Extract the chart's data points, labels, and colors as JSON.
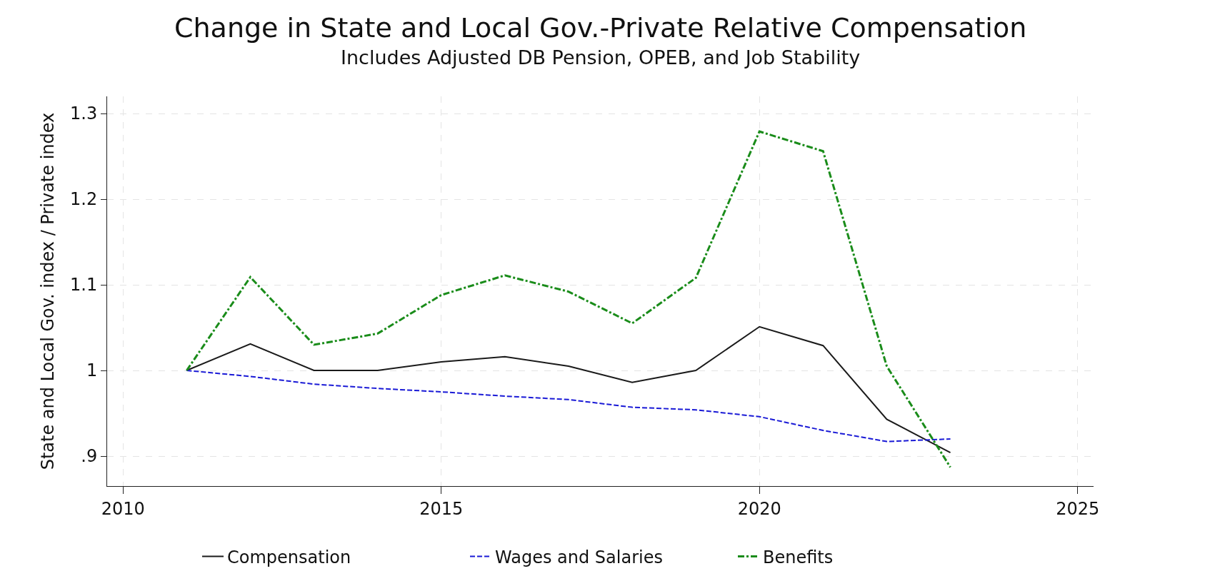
{
  "chart_data": {
    "type": "line",
    "title": "Change in State and Local Gov.-Private Relative Compensation",
    "subtitle": "Includes Adjusted DB Pension, OPEB, and Job Stability",
    "ylabel": "State and Local Gov. index / Private index",
    "x": [
      2011,
      2012,
      2013,
      2014,
      2015,
      2016,
      2017,
      2018,
      2019,
      2020,
      2021,
      2022,
      2023
    ],
    "series": [
      {
        "name": "Compensation",
        "color": "#1a1a1a",
        "line_style": "solid",
        "values": [
          1.0,
          1.031,
          1.0,
          1.0,
          1.01,
          1.016,
          1.005,
          0.986,
          1.0,
          1.051,
          1.029,
          0.943,
          0.904
        ]
      },
      {
        "name": "Wages and Salaries",
        "color": "#1a1ad6",
        "line_style": "dashed",
        "values": [
          1.0,
          0.993,
          0.984,
          0.979,
          0.975,
          0.97,
          0.966,
          0.957,
          0.954,
          0.946,
          0.93,
          0.917,
          0.92
        ]
      },
      {
        "name": "Benefits",
        "color": "#1a8c1a",
        "line_style": "dotted",
        "values": [
          1.0,
          1.109,
          1.03,
          1.043,
          1.088,
          1.111,
          1.092,
          1.055,
          1.108,
          1.279,
          1.256,
          1.005,
          0.887
        ]
      }
    ],
    "xlim": [
      2009.75,
      2025.25
    ],
    "xticks": [
      2010,
      2015,
      2020,
      2025
    ],
    "ylim": [
      0.865,
      1.32
    ],
    "yticks": [
      {
        "value": 0.9,
        "label": ".9"
      },
      1,
      1.1,
      1.2,
      1.3
    ],
    "grid": true,
    "legend": "bottom",
    "marker": "none"
  }
}
